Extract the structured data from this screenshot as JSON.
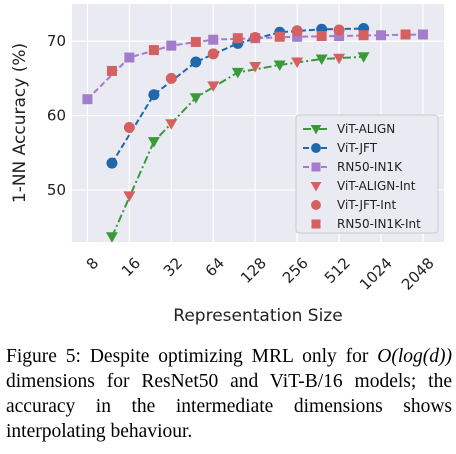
{
  "chart_data": {
    "type": "line",
    "xscale": "log2",
    "xlabel": "Representation Size",
    "ylabel": "1-NN Accuracy (%)",
    "x_ticks": [
      8,
      16,
      32,
      64,
      128,
      256,
      512,
      1024,
      2048
    ],
    "y_ticks": [
      50,
      60,
      70
    ],
    "xlim": [
      6.2,
      2900
    ],
    "ylim": [
      43,
      75
    ],
    "grid": true,
    "legend_position": "lower-right",
    "series": [
      {
        "name": "ViT-ALIGN",
        "color": "#3a9a3a",
        "marker": "triangle-down",
        "linestyle": "dashdot",
        "x": [
          12,
          24,
          48,
          96,
          192,
          384,
          768
        ],
        "y": [
          43.7,
          56.5,
          62.4,
          65.8,
          66.8,
          67.6,
          67.9
        ]
      },
      {
        "name": "ViT-JFT",
        "color": "#1f68ac",
        "marker": "circle",
        "linestyle": "dashed",
        "x": [
          12,
          24,
          48,
          96,
          192,
          384,
          768
        ],
        "y": [
          53.6,
          62.8,
          67.2,
          69.7,
          71.2,
          71.6,
          71.7
        ]
      },
      {
        "name": "RN50-IN1K",
        "color": "#a57ccb",
        "marker": "square",
        "linestyle": "dashed",
        "x": [
          8,
          16,
          32,
          64,
          128,
          256,
          512,
          1024,
          2048
        ],
        "y": [
          62.2,
          67.8,
          69.4,
          70.2,
          70.4,
          70.6,
          70.7,
          70.8,
          70.9
        ]
      },
      {
        "name": "ViT-ALIGN-Int",
        "color": "#d65f5f",
        "marker": "triangle-down",
        "linestyle": "none",
        "x": [
          16,
          32,
          64,
          128,
          256,
          512
        ],
        "y": [
          49.2,
          58.9,
          64.0,
          66.6,
          67.2,
          67.7
        ]
      },
      {
        "name": "ViT-JFT-Int",
        "color": "#d65f5f",
        "marker": "circle",
        "linestyle": "none",
        "x": [
          16,
          32,
          64,
          128,
          256,
          512
        ],
        "y": [
          58.4,
          65.0,
          68.3,
          70.5,
          71.4,
          71.5
        ]
      },
      {
        "name": "RN50-IN1K-Int",
        "color": "#d65f5f",
        "marker": "square",
        "linestyle": "none",
        "x": [
          12,
          24,
          48,
          96,
          192,
          384,
          768,
          1536
        ],
        "y": [
          66.0,
          68.8,
          69.9,
          70.4,
          70.6,
          70.7,
          70.8,
          70.9
        ]
      }
    ]
  },
  "caption": {
    "part1": "Figure 5: Despite optimizing MRL only for ",
    "math1": "O(log(d))",
    "part2": " dimensions for ResNet50 and ViT-B/16 models; the accuracy in the intermediate dimensions shows interpolating behaviour."
  }
}
